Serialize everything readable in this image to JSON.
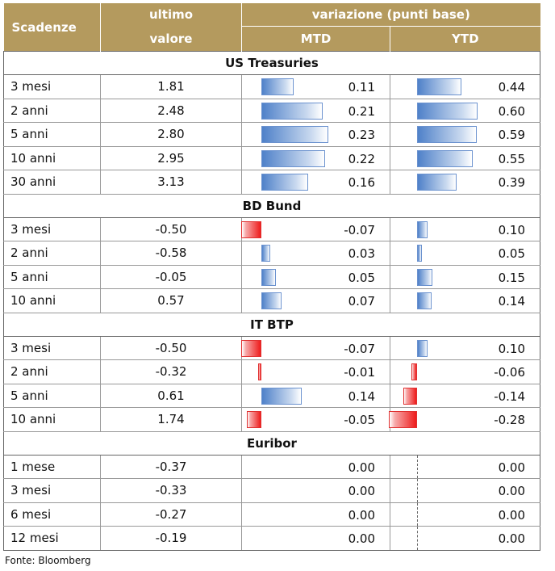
{
  "header": {
    "scadenze": "Scadenze",
    "ultimo_line1": "ultimo",
    "ultimo_line2": "valore",
    "variazione": "variazione (punti base)",
    "mtd": "MTD",
    "ytd": "YTD"
  },
  "groups": [
    {
      "title": "US Treasuries",
      "rows": [
        {
          "label": "3 mesi",
          "ultimo": "1.81",
          "mtd": "0.11",
          "ytd": "0.44"
        },
        {
          "label": "2 anni",
          "ultimo": "2.48",
          "mtd": "0.21",
          "ytd": "0.60"
        },
        {
          "label": "5 anni",
          "ultimo": "2.80",
          "mtd": "0.23",
          "ytd": "0.59"
        },
        {
          "label": "10 anni",
          "ultimo": "2.95",
          "mtd": "0.22",
          "ytd": "0.55"
        },
        {
          "label": "30 anni",
          "ultimo": "3.13",
          "mtd": "0.16",
          "ytd": "0.39"
        }
      ]
    },
    {
      "title": "BD Bund",
      "rows": [
        {
          "label": "3 mesi",
          "ultimo": "-0.50",
          "mtd": "-0.07",
          "ytd": "0.10"
        },
        {
          "label": "2 anni",
          "ultimo": "-0.58",
          "mtd": "0.03",
          "ytd": "0.05"
        },
        {
          "label": "5 anni",
          "ultimo": "-0.05",
          "mtd": "0.05",
          "ytd": "0.15"
        },
        {
          "label": "10 anni",
          "ultimo": "0.57",
          "mtd": "0.07",
          "ytd": "0.14"
        }
      ]
    },
    {
      "title": "IT BTP",
      "rows": [
        {
          "label": "3 mesi",
          "ultimo": "-0.50",
          "mtd": "-0.07",
          "ytd": "0.10"
        },
        {
          "label": "2 anni",
          "ultimo": "-0.32",
          "mtd": "-0.01",
          "ytd": "-0.06"
        },
        {
          "label": "5 anni",
          "ultimo": "0.61",
          "mtd": "0.14",
          "ytd": "-0.14"
        },
        {
          "label": "10 anni",
          "ultimo": "1.74",
          "mtd": "-0.05",
          "ytd": "-0.28"
        }
      ]
    },
    {
      "title": "Euribor",
      "rows": [
        {
          "label": "1 mese",
          "ultimo": "-0.37",
          "mtd": "0.00",
          "ytd": "0.00"
        },
        {
          "label": "3 mesi",
          "ultimo": "-0.33",
          "mtd": "0.00",
          "ytd": "0.00"
        },
        {
          "label": "6 mesi",
          "ultimo": "-0.27",
          "mtd": "0.00",
          "ytd": "0.00"
        },
        {
          "label": "12 mesi",
          "ultimo": "-0.19",
          "mtd": "0.00",
          "ytd": "0.00"
        }
      ]
    }
  ],
  "footer": "Fonte: Bloomberg",
  "colors": {
    "header_bg": "#b49a5e",
    "positive_bar": "#4f81c9",
    "negative_bar": "#ee1c1c"
  }
}
